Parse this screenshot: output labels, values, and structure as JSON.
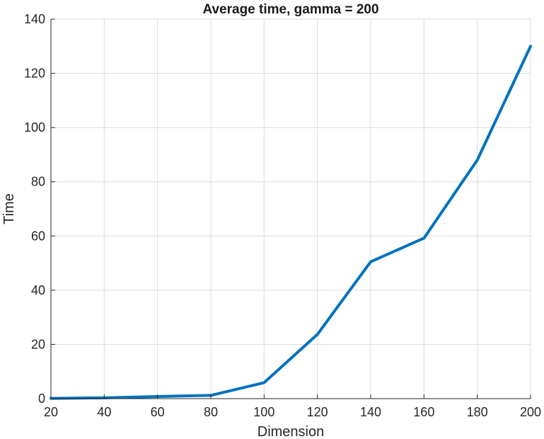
{
  "chart_data": {
    "type": "line",
    "title": "Average time, gamma = 200",
    "xlabel": "Dimension",
    "ylabel": "Time",
    "xlim": [
      20,
      200
    ],
    "ylim": [
      0,
      140
    ],
    "xticks": [
      20,
      40,
      60,
      80,
      100,
      120,
      140,
      160,
      180,
      200
    ],
    "yticks": [
      0,
      20,
      40,
      60,
      80,
      100,
      120,
      140
    ],
    "grid": true,
    "series": [
      {
        "color": "#0072bd",
        "x": [
          20,
          40,
          60,
          80,
          100,
          120,
          140,
          160,
          180,
          200
        ],
        "y": [
          0.1,
          0.3,
          0.8,
          1.2,
          5.9,
          23.7,
          50.5,
          59.2,
          88.0,
          130.0
        ]
      }
    ]
  }
}
